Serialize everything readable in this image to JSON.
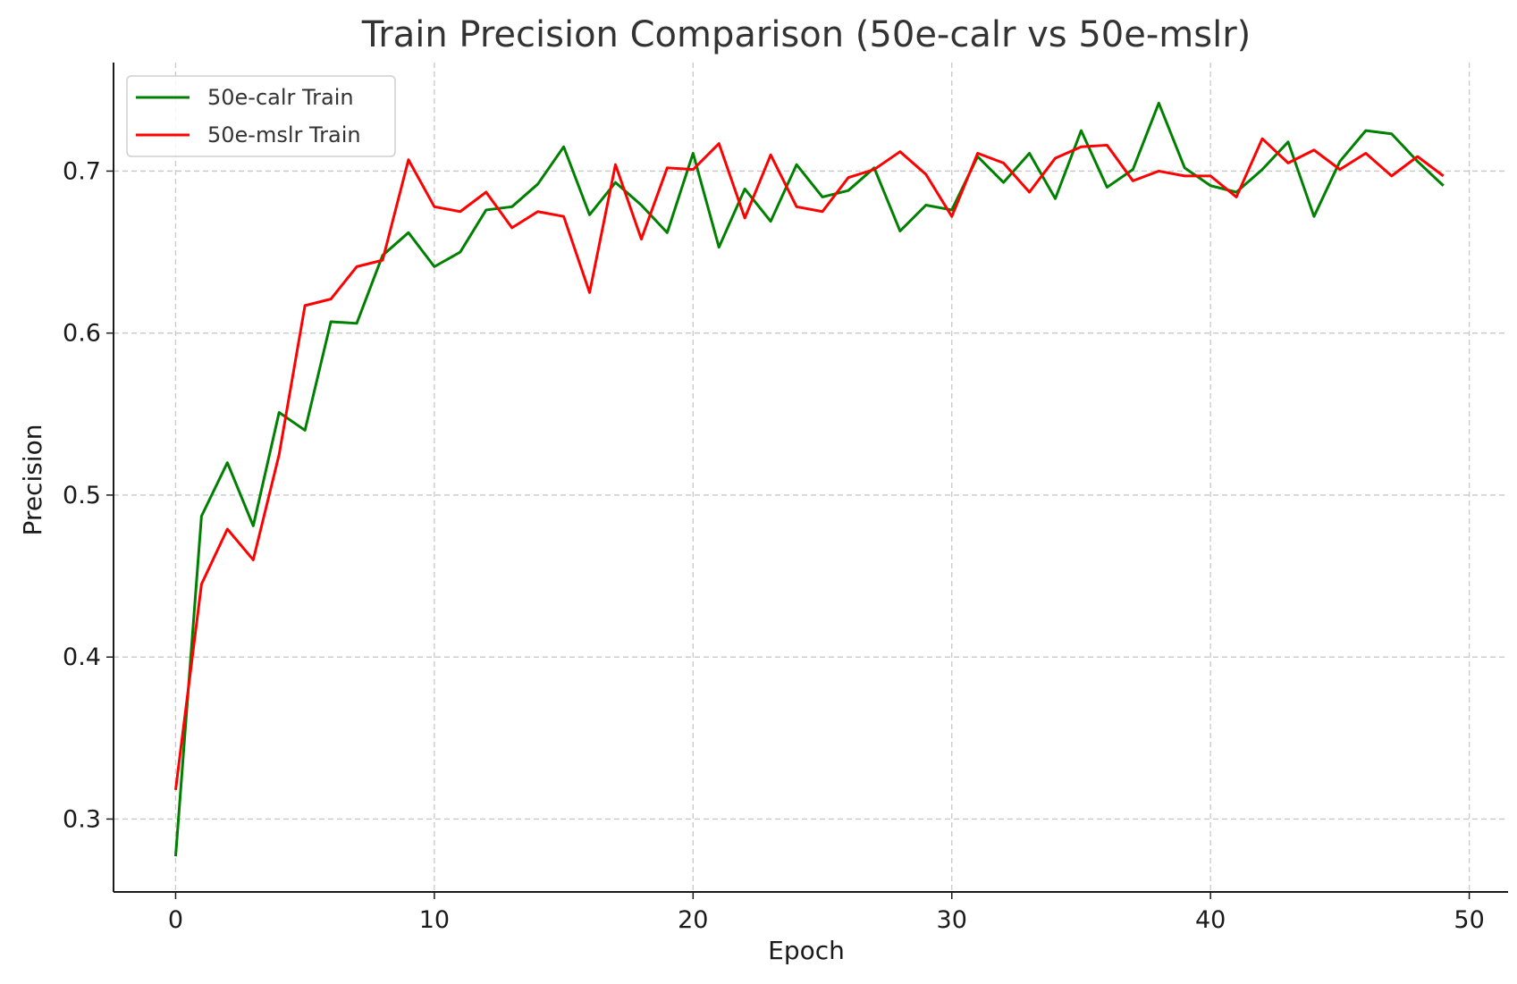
{
  "chart_data": {
    "type": "line",
    "title": "Train Precision Comparison (50e-calr vs 50e-mslr)",
    "xlabel": "Epoch",
    "ylabel": "Precision",
    "xlim": [
      -2.4,
      51.5
    ],
    "ylim": [
      0.255,
      0.767
    ],
    "xticks": [
      0,
      10,
      20,
      30,
      40,
      50
    ],
    "yticks": [
      0.3,
      0.4,
      0.5,
      0.6,
      0.7
    ],
    "xtick_labels": [
      "0",
      "10",
      "20",
      "30",
      "40",
      "50"
    ],
    "ytick_labels": [
      "0.3",
      "0.4",
      "0.5",
      "0.6",
      "0.7"
    ],
    "grid": true,
    "legend_position": "top-left",
    "x": [
      0,
      1,
      2,
      3,
      4,
      5,
      6,
      7,
      8,
      9,
      10,
      11,
      12,
      13,
      14,
      15,
      16,
      17,
      18,
      19,
      20,
      21,
      22,
      23,
      24,
      25,
      26,
      27,
      28,
      29,
      30,
      31,
      32,
      33,
      34,
      35,
      36,
      37,
      38,
      39,
      40,
      41,
      42,
      43,
      44,
      45,
      46,
      47,
      48,
      49
    ],
    "series": [
      {
        "name": "50e-calr Train",
        "color": "#008000",
        "values": [
          0.277,
          0.487,
          0.52,
          0.481,
          0.551,
          0.54,
          0.607,
          0.606,
          0.648,
          0.662,
          0.641,
          0.65,
          0.676,
          0.678,
          0.692,
          0.715,
          0.673,
          0.693,
          0.679,
          0.662,
          0.711,
          0.653,
          0.689,
          0.669,
          0.704,
          0.684,
          0.688,
          0.702,
          0.663,
          0.679,
          0.676,
          0.709,
          0.693,
          0.711,
          0.683,
          0.725,
          0.69,
          0.701,
          0.742,
          0.702,
          0.691,
          0.687,
          0.701,
          0.718,
          0.672,
          0.706,
          0.725,
          0.723,
          0.706,
          0.691
        ]
      },
      {
        "name": "50e-mslr Train",
        "color": "#ff0000",
        "values": [
          0.318,
          0.445,
          0.479,
          0.46,
          0.525,
          0.617,
          0.621,
          0.641,
          0.645,
          0.707,
          0.678,
          0.675,
          0.687,
          0.665,
          0.675,
          0.672,
          0.625,
          0.704,
          0.658,
          0.702,
          0.701,
          0.717,
          0.671,
          0.71,
          0.678,
          0.675,
          0.696,
          0.701,
          0.712,
          0.698,
          0.672,
          0.711,
          0.705,
          0.687,
          0.708,
          0.715,
          0.716,
          0.694,
          0.7,
          0.697,
          0.697,
          0.684,
          0.72,
          0.705,
          0.713,
          0.701,
          0.711,
          0.697,
          0.709,
          0.697
        ]
      }
    ]
  }
}
